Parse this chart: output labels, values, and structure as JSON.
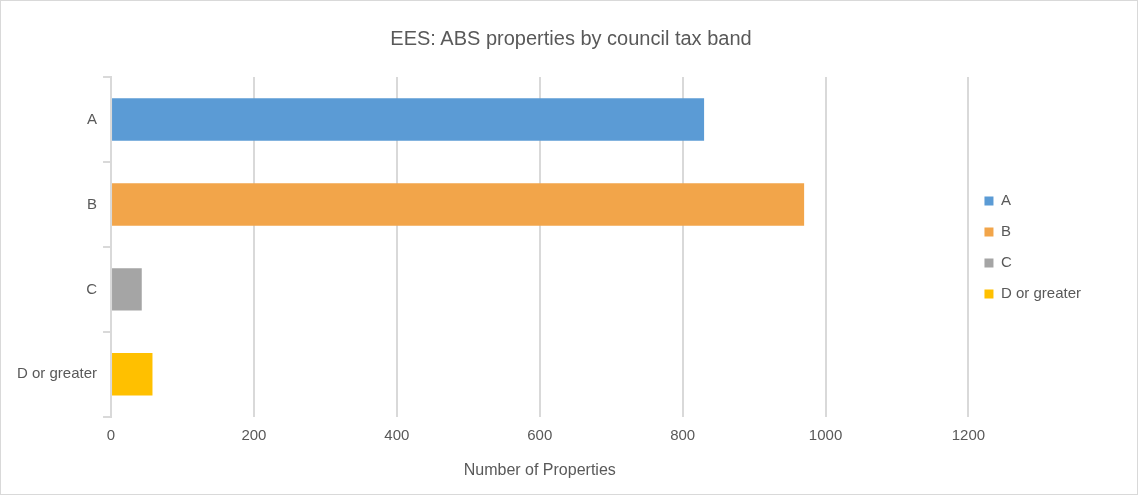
{
  "chart_data": {
    "type": "bar",
    "orientation": "horizontal",
    "stacked": true,
    "title": "EES: ABS properties by council tax band",
    "xlabel": "Number of Properties",
    "categories": [
      "A",
      "B",
      "C",
      "D or greater"
    ],
    "series": [
      {
        "name": "A",
        "color": "#5b9bd5",
        "values": [
          830,
          null,
          null,
          null
        ]
      },
      {
        "name": "B",
        "color": "#f2a54a",
        "values": [
          null,
          970,
          null,
          null
        ]
      },
      {
        "name": "C",
        "color": "#a5a5a5",
        "values": [
          null,
          null,
          43,
          null
        ]
      },
      {
        "name": "D or greater",
        "color": "#ffc000",
        "values": [
          null,
          null,
          null,
          58
        ]
      }
    ],
    "xlim": [
      0,
      1200
    ],
    "xticks": [
      0,
      200,
      400,
      600,
      800,
      1000,
      1200
    ],
    "grid": "x",
    "legend": "right"
  }
}
